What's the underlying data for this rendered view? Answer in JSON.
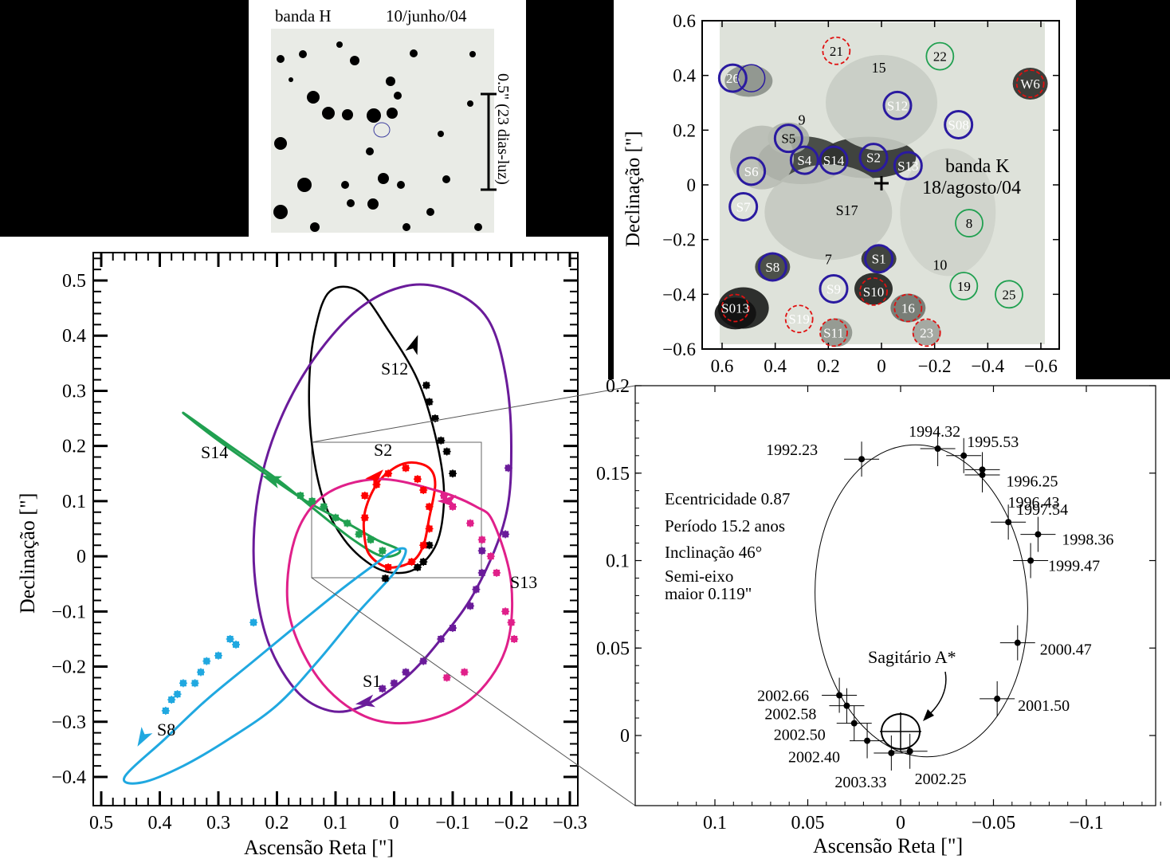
{
  "colors": {
    "black": "#000000",
    "purple": "#6a1b9a",
    "red": "#ff0000",
    "green": "#20a050",
    "pink": "#e0208a",
    "cyan": "#20a8e0",
    "blue_circle": "#2a1aa0",
    "red_circle": "#e01010",
    "green_circle": "#20a050"
  },
  "h_image": {
    "band_label": "banda H",
    "date_label": "10/junho/04",
    "scale_label": "0.5\" (23 dias-luz)"
  },
  "k_image": {
    "band_label": "banda K",
    "date_label": "18/agosto/04",
    "ylabel": "Declinação [\"]",
    "xlim": [
      0.6,
      -0.6
    ],
    "ylim": [
      -0.6,
      0.6
    ],
    "x_ticks": [
      "0.6",
      "0.4",
      "0.2",
      "0",
      "−0.2",
      "−0.4",
      "−0.6"
    ],
    "y_ticks": [
      "0.6",
      "0.4",
      "0.2",
      "0",
      "−0.2",
      "−0.4",
      "−0.6"
    ],
    "stars": [
      {
        "label": "26",
        "x": 0.56,
        "y": 0.39,
        "ring": "blue"
      },
      {
        "label": "21",
        "x": 0.17,
        "y": 0.49,
        "ring": "red"
      },
      {
        "label": "22",
        "x": -0.22,
        "y": 0.47,
        "ring": "green"
      },
      {
        "label": "W6",
        "x": -0.56,
        "y": 0.37,
        "ring": "red"
      },
      {
        "label": "S12",
        "x": -0.06,
        "y": 0.29,
        "ring": "blue"
      },
      {
        "label": "S08",
        "x": -0.29,
        "y": 0.22,
        "ring": "blue"
      },
      {
        "label": "S5",
        "x": 0.35,
        "y": 0.17,
        "ring": "blue"
      },
      {
        "label": "S4",
        "x": 0.29,
        "y": 0.09,
        "ring": "blue"
      },
      {
        "label": "S14",
        "x": 0.18,
        "y": 0.09,
        "ring": "blue"
      },
      {
        "label": "S2",
        "x": 0.03,
        "y": 0.1,
        "ring": "blue"
      },
      {
        "label": "S13",
        "x": -0.1,
        "y": 0.07,
        "ring": "blue"
      },
      {
        "label": "S6",
        "x": 0.49,
        "y": 0.05,
        "ring": "blue"
      },
      {
        "label": "S7",
        "x": 0.52,
        "y": -0.08,
        "ring": "blue"
      },
      {
        "label": "8",
        "x": -0.33,
        "y": -0.14,
        "ring": "green"
      },
      {
        "label": "S1",
        "x": 0.01,
        "y": -0.27,
        "ring": "blue"
      },
      {
        "label": "S8",
        "x": 0.41,
        "y": -0.3,
        "ring": "blue"
      },
      {
        "label": "S9",
        "x": 0.18,
        "y": -0.38,
        "ring": "blue"
      },
      {
        "label": "S10",
        "x": 0.03,
        "y": -0.39,
        "ring": "red"
      },
      {
        "label": "16",
        "x": -0.1,
        "y": -0.45,
        "ring": "red"
      },
      {
        "label": "19",
        "x": -0.31,
        "y": -0.37,
        "ring": "green"
      },
      {
        "label": "25",
        "x": -0.48,
        "y": -0.4,
        "ring": "green"
      },
      {
        "label": "S013",
        "x": 0.55,
        "y": -0.45,
        "ring": "red"
      },
      {
        "label": "S19",
        "x": 0.31,
        "y": -0.49,
        "ring": "red"
      },
      {
        "label": "S11",
        "x": 0.18,
        "y": -0.54,
        "ring": "red"
      },
      {
        "label": "23",
        "x": -0.17,
        "y": -0.54,
        "ring": "red"
      }
    ],
    "labels": [
      {
        "text": "15",
        "x": 0.01,
        "y": 0.41
      },
      {
        "text": "9",
        "x": 0.3,
        "y": 0.22
      },
      {
        "text": "S17",
        "x": 0.13,
        "y": -0.11
      },
      {
        "text": "7",
        "x": 0.2,
        "y": -0.29
      },
      {
        "text": "10",
        "x": -0.22,
        "y": -0.31
      }
    ]
  },
  "chart_data": [
    {
      "type": "line",
      "xlabel": "Ascensão Reta [\"]",
      "ylabel": "Declinação [\"]",
      "xlim": [
        0.5,
        -0.3
      ],
      "ylim": [
        -0.42,
        0.55
      ],
      "x_ticks": [
        "0.5",
        "0.4",
        "0.3",
        "0.2",
        "0.1",
        "0",
        "−0.1",
        "−0.2",
        "−0.3"
      ],
      "y_ticks": [
        "0.5",
        "0.4",
        "0.3",
        "0.2",
        "0.1",
        "0",
        "−0.1",
        "−0.2",
        "−0.3",
        "−0.4"
      ],
      "series": [
        {
          "name": "S12",
          "color": "black",
          "orbit": [
            [
              0.0,
              -0.03
            ],
            [
              -0.04,
              -0.02
            ],
            [
              -0.075,
              0.03
            ],
            [
              -0.085,
              0.12
            ],
            [
              -0.07,
              0.22
            ],
            [
              -0.04,
              0.32
            ],
            [
              0.01,
              0.41
            ],
            [
              0.06,
              0.48
            ],
            [
              0.11,
              0.48
            ],
            [
              0.135,
              0.41
            ],
            [
              0.145,
              0.31
            ],
            [
              0.14,
              0.2
            ],
            [
              0.12,
              0.1
            ],
            [
              0.085,
              0.03
            ],
            [
              0.04,
              -0.015
            ],
            [
              0.0,
              -0.03
            ]
          ],
          "points": [
            [
              -0.055,
              0.31
            ],
            [
              -0.06,
              0.28
            ],
            [
              -0.07,
              0.25
            ],
            [
              -0.08,
              0.21
            ],
            [
              -0.09,
              0.19
            ],
            [
              -0.1,
              0.15
            ],
            [
              -0.06,
              0.02
            ],
            [
              -0.05,
              -0.01
            ],
            [
              -0.04,
              -0.02
            ],
            [
              0.015,
              -0.04
            ]
          ]
        },
        {
          "name": "S1",
          "color": "purple",
          "orbit": [
            [
              -0.19,
              0.07
            ],
            [
              -0.2,
              0.2
            ],
            [
              -0.19,
              0.33
            ],
            [
              -0.16,
              0.43
            ],
            [
              -0.1,
              0.48
            ],
            [
              -0.02,
              0.49
            ],
            [
              0.07,
              0.44
            ],
            [
              0.16,
              0.32
            ],
            [
              0.22,
              0.17
            ],
            [
              0.24,
              0.01
            ],
            [
              0.22,
              -0.14
            ],
            [
              0.17,
              -0.24
            ],
            [
              0.11,
              -0.28
            ],
            [
              0.05,
              -0.27
            ],
            [
              -0.02,
              -0.22
            ],
            [
              -0.08,
              -0.15
            ],
            [
              -0.14,
              -0.06
            ],
            [
              -0.19,
              0.07
            ]
          ],
          "points": [
            [
              -0.195,
              0.16
            ],
            [
              -0.19,
              0.04
            ],
            [
              -0.15,
              0.01
            ],
            [
              -0.15,
              -0.03
            ],
            [
              -0.14,
              -0.06
            ],
            [
              -0.13,
              -0.09
            ],
            [
              -0.1,
              -0.13
            ],
            [
              -0.08,
              -0.15
            ],
            [
              -0.05,
              -0.19
            ],
            [
              -0.02,
              -0.21
            ],
            [
              0.0,
              -0.23
            ],
            [
              0.02,
              -0.24
            ]
          ]
        },
        {
          "name": "S14",
          "color": "green",
          "orbit": [
            [
              0.36,
              0.26
            ],
            [
              0.3,
              0.21
            ],
            [
              0.22,
              0.15
            ],
            [
              0.15,
              0.1
            ],
            [
              0.08,
              0.06
            ],
            [
              0.03,
              0.03
            ],
            [
              -0.01,
              0.01
            ],
            [
              0.02,
              0.0
            ],
            [
              0.07,
              0.03
            ],
            [
              0.13,
              0.08
            ],
            [
              0.2,
              0.14
            ],
            [
              0.28,
              0.2
            ],
            [
              0.36,
              0.26
            ]
          ],
          "points": [
            [
              0.16,
              0.11
            ],
            [
              0.14,
              0.1
            ],
            [
              0.12,
              0.09
            ],
            [
              0.1,
              0.07
            ],
            [
              0.08,
              0.06
            ],
            [
              0.06,
              0.04
            ],
            [
              0.04,
              0.03
            ],
            [
              0.02,
              0.01
            ]
          ]
        },
        {
          "name": "S2",
          "color": "red",
          "orbit": [
            [
              -0.06,
              0.07
            ],
            [
              -0.07,
              0.13
            ],
            [
              -0.06,
              0.16
            ],
            [
              -0.03,
              0.17
            ],
            [
              0.0,
              0.16
            ],
            [
              0.03,
              0.13
            ],
            [
              0.05,
              0.08
            ],
            [
              0.05,
              0.03
            ],
            [
              0.04,
              0.0
            ],
            [
              0.01,
              -0.02
            ],
            [
              -0.03,
              -0.01
            ],
            [
              -0.05,
              0.02
            ],
            [
              -0.06,
              0.07
            ]
          ],
          "points": [
            [
              0.05,
              0.11
            ],
            [
              0.05,
              0.07
            ],
            [
              0.03,
              0.13
            ],
            [
              0.01,
              0.15
            ],
            [
              -0.02,
              0.16
            ],
            [
              -0.04,
              0.14
            ],
            [
              -0.05,
              0.12
            ],
            [
              -0.06,
              0.09
            ],
            [
              -0.06,
              0.05
            ],
            [
              -0.05,
              0.02
            ],
            [
              -0.03,
              -0.01
            ],
            [
              0.01,
              -0.02
            ]
          ]
        },
        {
          "name": "S13",
          "color": "pink",
          "orbit": [
            [
              -0.17,
              0.06
            ],
            [
              -0.2,
              -0.05
            ],
            [
              -0.19,
              -0.17
            ],
            [
              -0.13,
              -0.26
            ],
            [
              -0.04,
              -0.3
            ],
            [
              0.05,
              -0.29
            ],
            [
              0.13,
              -0.22
            ],
            [
              0.18,
              -0.1
            ],
            [
              0.17,
              0.03
            ],
            [
              0.12,
              0.11
            ],
            [
              0.03,
              0.14
            ],
            [
              -0.07,
              0.12
            ],
            [
              -0.14,
              0.09
            ],
            [
              -0.17,
              0.06
            ]
          ],
          "points": [
            [
              -0.085,
              0.11
            ],
            [
              -0.1,
              0.09
            ],
            [
              -0.13,
              0.06
            ],
            [
              -0.15,
              0.03
            ],
            [
              -0.165,
              0.0
            ],
            [
              -0.175,
              -0.03
            ],
            [
              -0.19,
              -0.1
            ],
            [
              -0.2,
              -0.12
            ],
            [
              -0.205,
              -0.15
            ],
            [
              -0.12,
              -0.21
            ],
            [
              -0.09,
              -0.22
            ]
          ]
        },
        {
          "name": "S8",
          "color": "cyan",
          "orbit": [
            [
              0.46,
              -0.4
            ],
            [
              0.39,
              -0.33
            ],
            [
              0.32,
              -0.26
            ],
            [
              0.24,
              -0.19
            ],
            [
              0.16,
              -0.12
            ],
            [
              0.09,
              -0.06
            ],
            [
              0.04,
              -0.02
            ],
            [
              0.0,
              0.01
            ],
            [
              -0.02,
              0.01
            ],
            [
              0.0,
              -0.03
            ],
            [
              0.06,
              -0.1
            ],
            [
              0.13,
              -0.19
            ],
            [
              0.2,
              -0.27
            ],
            [
              0.28,
              -0.33
            ],
            [
              0.36,
              -0.38
            ],
            [
              0.43,
              -0.41
            ],
            [
              0.46,
              -0.4
            ]
          ],
          "points": [
            [
              0.24,
              -0.12
            ],
            [
              0.27,
              -0.16
            ],
            [
              0.28,
              -0.15
            ],
            [
              0.3,
              -0.18
            ],
            [
              0.32,
              -0.19
            ],
            [
              0.33,
              -0.21
            ],
            [
              0.34,
              -0.23
            ],
            [
              0.36,
              -0.23
            ],
            [
              0.37,
              -0.25
            ],
            [
              0.38,
              -0.26
            ],
            [
              0.39,
              -0.28
            ]
          ]
        }
      ]
    },
    {
      "type": "scatter",
      "title": "",
      "xlabel": "Ascensão Reta [\"]",
      "ylabel": "",
      "xlim": [
        0.12,
        -0.14
      ],
      "ylim": [
        -0.018,
        0.2
      ],
      "x_ticks": [
        "0.1",
        "0.05",
        "0",
        "−0.05",
        "−0.1"
      ],
      "y_ticks": [
        "0.2",
        "0.15",
        "0.1",
        "0.05",
        "0"
      ],
      "series": [
        {
          "name": "S2",
          "points": [
            {
              "label": "1992.23",
              "x": 0.021,
              "y": 0.158
            },
            {
              "label": "1994.32",
              "x": -0.02,
              "y": 0.164
            },
            {
              "label": "1995.53",
              "x": -0.034,
              "y": 0.16
            },
            {
              "label": "1996.25",
              "x": -0.044,
              "y": 0.152
            },
            {
              "label": "1996.43",
              "x": -0.044,
              "y": 0.149
            },
            {
              "label": "1997.54",
              "x": -0.058,
              "y": 0.122
            },
            {
              "label": "1998.36",
              "x": -0.074,
              "y": 0.115
            },
            {
              "label": "1999.47",
              "x": -0.07,
              "y": 0.1
            },
            {
              "label": "2000.47",
              "x": -0.063,
              "y": 0.053
            },
            {
              "label": "2001.50",
              "x": -0.052,
              "y": 0.021
            },
            {
              "label": "2002.25",
              "x": -0.005,
              "y": -0.009
            },
            {
              "label": "2002.40",
              "x": 0.018,
              "y": -0.003
            },
            {
              "label": "2002.50",
              "x": 0.025,
              "y": 0.007
            },
            {
              "label": "2002.58",
              "x": 0.029,
              "y": 0.017
            },
            {
              "label": "2002.66",
              "x": 0.033,
              "y": 0.023
            },
            {
              "label": "2003.33",
              "x": 0.005,
              "y": -0.01
            }
          ]
        }
      ],
      "annotations": {
        "ecc": "Ecentricidade  0.87",
        "period": "Período 15.2 anos",
        "incl": "Inclinação 46°",
        "semi1": "Semi-eixo",
        "semi2": "maior 0.119\"",
        "sgr": "Sagitário A*"
      }
    }
  ],
  "orbit_labels": {
    "S12": "S12",
    "S14": "S14",
    "S2": "S2",
    "S13": "S13",
    "S1": "S1",
    "S8": "S8"
  }
}
